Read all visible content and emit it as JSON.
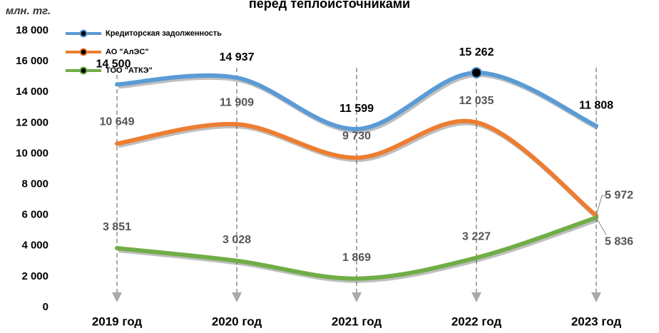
{
  "chart_data": {
    "type": "line",
    "title": "перед теплоисточниками",
    "y_label": "млн. тг.",
    "categories": [
      "2019 год",
      "2020 год",
      "2021 год",
      "2022 год",
      "2023 год"
    ],
    "series": [
      {
        "name": "Кредиторская задолженность",
        "color": "#5b9bd5",
        "values": [
          14500,
          14937,
          11599,
          15262,
          11808
        ],
        "value_labels": [
          "14 500",
          "14 937",
          "11 599",
          "15 262",
          "11 808"
        ]
      },
      {
        "name": "АО \"АлЭС\"",
        "color": "#ed7d31",
        "values": [
          10649,
          11909,
          9730,
          12035,
          5972
        ],
        "value_labels": [
          "10 649",
          "11 909",
          "9 730",
          "12 035",
          "5 972"
        ]
      },
      {
        "name": "ТОО \"АТКЭ\"",
        "color": "#70ad47",
        "values": [
          3851,
          3028,
          1869,
          3227,
          5836
        ],
        "value_labels": [
          "3 851",
          "3 028",
          "1 869",
          "3 227",
          "5 836"
        ]
      }
    ],
    "ylim": [
      0,
      18000
    ],
    "yticks": [
      {
        "value": 0,
        "label": "0"
      },
      {
        "value": 2000,
        "label": "2 000"
      },
      {
        "value": 4000,
        "label": "4 000"
      },
      {
        "value": 6000,
        "label": "6 000"
      },
      {
        "value": 8000,
        "label": "8 000"
      },
      {
        "value": 10000,
        "label": "10 000"
      },
      {
        "value": 12000,
        "label": "12 000"
      },
      {
        "value": 14000,
        "label": "14 000"
      },
      {
        "value": 16000,
        "label": "16 000"
      },
      {
        "value": 18000,
        "label": "18 000"
      }
    ],
    "legend": "top-left"
  }
}
